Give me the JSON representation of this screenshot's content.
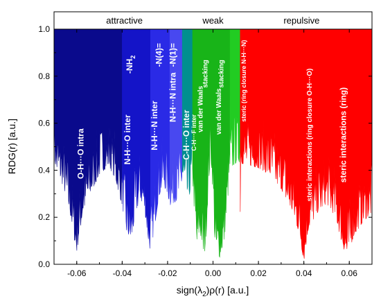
{
  "chart_data": {
    "type": "area",
    "xlabel_parts": [
      "sign(λ",
      "2",
      ")ρ(r) [a.u.]"
    ],
    "ylabel": "RDG(r) [a.u.]",
    "xlim": [
      -0.07,
      0.07
    ],
    "ylim": [
      0.0,
      1.0
    ],
    "x_ticks": [
      -0.06,
      -0.04,
      -0.02,
      0.0,
      0.02,
      0.04,
      0.06
    ],
    "x_tick_labels": [
      "-0.06",
      "-0.04",
      "-0.02",
      "0.00",
      "0.02",
      "0.04",
      "0.06"
    ],
    "y_ticks": [
      0.0,
      0.2,
      0.4,
      0.6,
      0.8,
      1.0
    ],
    "y_tick_labels": [
      "0.0",
      "0.2",
      "0.4",
      "0.6",
      "0.8",
      "1.0"
    ],
    "grid": false,
    "legend": "none",
    "regions": [
      {
        "label": "attractive",
        "x_range": [
          -0.07,
          -0.008
        ]
      },
      {
        "label": "weak",
        "x_range": [
          -0.008,
          0.008
        ]
      },
      {
        "label": "repulsive",
        "x_range": [
          0.008,
          0.07
        ]
      }
    ],
    "series": [
      {
        "color": "#0a0a8c",
        "x_range": [
          -0.07,
          -0.04
        ],
        "points": [
          [
            -0.07,
            0.45
          ],
          [
            -0.069,
            0.4
          ],
          [
            -0.067,
            0.36
          ],
          [
            -0.065,
            0.3
          ],
          [
            -0.063,
            0.22
          ],
          [
            -0.061,
            0.1
          ],
          [
            -0.06,
            0.05
          ],
          [
            -0.059,
            0.12
          ],
          [
            -0.057,
            0.23
          ],
          [
            -0.054,
            0.3
          ],
          [
            -0.05,
            0.38
          ],
          [
            -0.046,
            0.42
          ],
          [
            -0.043,
            0.36
          ],
          [
            -0.04,
            0.25
          ]
        ]
      },
      {
        "color": "#1414c8",
        "x_range": [
          -0.04,
          -0.0275
        ],
        "points": [
          [
            -0.04,
            0.25
          ],
          [
            -0.038,
            0.13
          ],
          [
            -0.036,
            0.1
          ],
          [
            -0.034,
            0.22
          ],
          [
            -0.032,
            0.28
          ],
          [
            -0.03,
            0.22
          ],
          [
            -0.0285,
            0.1
          ],
          [
            -0.0275,
            0.05
          ]
        ]
      },
      {
        "color": "#2a2ae6",
        "x_range": [
          -0.0275,
          -0.019
        ],
        "points": [
          [
            -0.0275,
            0.05
          ],
          [
            -0.026,
            0.14
          ],
          [
            -0.024,
            0.28
          ],
          [
            -0.022,
            0.34
          ],
          [
            -0.02,
            0.3
          ],
          [
            -0.019,
            0.25
          ]
        ]
      },
      {
        "color": "#4848f0",
        "x_range": [
          -0.019,
          -0.0135
        ],
        "points": [
          [
            -0.019,
            0.25
          ],
          [
            -0.0175,
            0.26
          ],
          [
            -0.016,
            0.27
          ],
          [
            -0.0145,
            0.3
          ],
          [
            -0.0135,
            0.35
          ]
        ]
      },
      {
        "color": "#008f8f",
        "x_range": [
          -0.0135,
          -0.009
        ],
        "points": [
          [
            -0.0135,
            0.35
          ],
          [
            -0.0125,
            0.32
          ],
          [
            -0.0115,
            0.28
          ],
          [
            -0.01,
            0.3
          ],
          [
            -0.009,
            0.36
          ]
        ]
      },
      {
        "color": "#18b418",
        "x_range": [
          -0.009,
          0.0075
        ],
        "points": [
          [
            -0.009,
            0.36
          ],
          [
            -0.008,
            0.18
          ],
          [
            -0.007,
            0.06
          ],
          [
            -0.006,
            0.14
          ],
          [
            -0.005,
            0.1
          ],
          [
            -0.004,
            0.02
          ],
          [
            -0.003,
            0.12
          ],
          [
            -0.002,
            0.34
          ],
          [
            -0.001,
            0.46
          ],
          [
            0.0,
            0.3
          ],
          [
            0.001,
            0.05
          ],
          [
            0.002,
            0.04
          ],
          [
            0.003,
            0.03
          ],
          [
            0.005,
            0.1
          ],
          [
            0.0075,
            0.4
          ]
        ]
      },
      {
        "color": "#22cc22",
        "x_range": [
          0.0075,
          0.012
        ],
        "points": [
          [
            0.0075,
            0.4
          ],
          [
            0.009,
            0.42
          ],
          [
            0.011,
            0.44
          ],
          [
            0.012,
            0.43
          ]
        ]
      },
      {
        "color": "#ff0000",
        "x_range": [
          0.012,
          0.07
        ],
        "points": [
          [
            0.012,
            0.43
          ],
          [
            0.016,
            0.42
          ],
          [
            0.02,
            0.41
          ],
          [
            0.025,
            0.38
          ],
          [
            0.03,
            0.32
          ],
          [
            0.035,
            0.22
          ],
          [
            0.038,
            0.13
          ],
          [
            0.04,
            0.01
          ],
          [
            0.042,
            0.15
          ],
          [
            0.046,
            0.22
          ],
          [
            0.05,
            0.26
          ],
          [
            0.054,
            0.2
          ],
          [
            0.057,
            0.08
          ],
          [
            0.059,
            0.03
          ],
          [
            0.062,
            0.12
          ],
          [
            0.066,
            0.18
          ],
          [
            0.07,
            0.22
          ]
        ]
      }
    ],
    "annotations": [
      {
        "text": "O-H···O  intra",
        "x": -0.057,
        "y": 0.47,
        "rotation": -90,
        "size": 12
      },
      {
        "text": "N-H···O inter",
        "x": -0.0365,
        "y": 0.53,
        "rotation": -90,
        "size": 12
      },
      {
        "text": "-NH",
        "sub": "2",
        "x": -0.0355,
        "y": 0.85,
        "rotation": -90,
        "size": 12
      },
      {
        "text": "N-H···N inter",
        "x": -0.0245,
        "y": 0.59,
        "rotation": -90,
        "size": 12
      },
      {
        "text": "-N(4)=",
        "x": -0.0225,
        "y": 0.89,
        "rotation": -90,
        "size": 12
      },
      {
        "text": "N-H···N intra",
        "x": -0.0165,
        "y": 0.71,
        "rotation": -90,
        "size": 12
      },
      {
        "text": "-N(1)=",
        "x": -0.0165,
        "y": 0.89,
        "rotation": -90,
        "size": 12
      },
      {
        "text": "C-H···O inter",
        "x": -0.0105,
        "y": 0.55,
        "rotation": -90,
        "size": 12
      },
      {
        "text": "C-H···F inter",
        "x": -0.0075,
        "y": 0.56,
        "rotation": -90,
        "size": 9
      },
      {
        "text": "van der Waals",
        "x": -0.0045,
        "y": 0.66,
        "rotation": -90,
        "size": 10
      },
      {
        "text": "stacking",
        "x": -0.0025,
        "y": 0.81,
        "rotation": -90,
        "size": 10
      },
      {
        "text": "van der Waals",
        "x": 0.0035,
        "y": 0.65,
        "rotation": -90,
        "size": 10
      },
      {
        "text": "stacking",
        "x": 0.0045,
        "y": 0.81,
        "rotation": -90,
        "size": 10
      },
      {
        "text": "steric (ring closure N-H···N)",
        "x": 0.0145,
        "y": 0.78,
        "rotation": -90,
        "size": 9
      },
      {
        "text": "steric interactions (ring closure O-H···O)",
        "x": 0.0435,
        "y": 0.55,
        "rotation": -90,
        "size": 10
      },
      {
        "text": "steric interactions (ring)",
        "x": 0.0585,
        "y": 0.55,
        "rotation": -90,
        "size": 12
      }
    ]
  }
}
